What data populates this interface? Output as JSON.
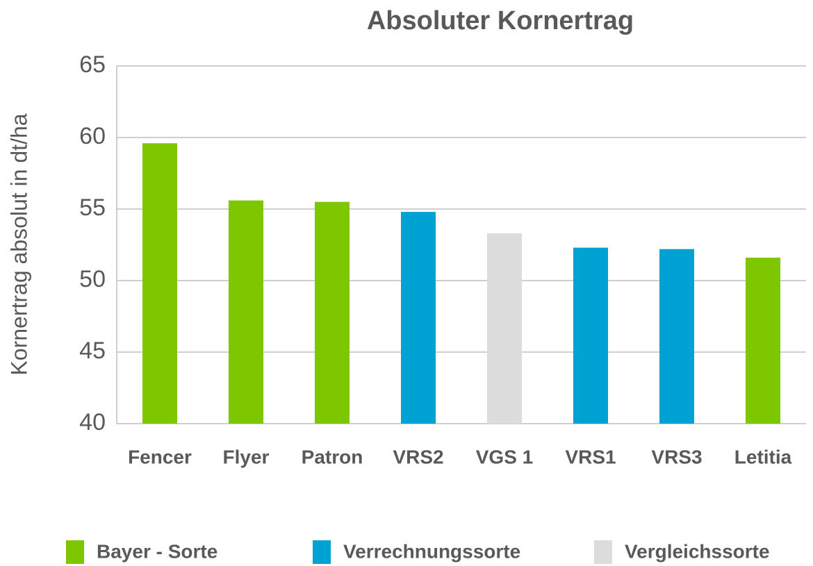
{
  "chart_data": {
    "type": "bar",
    "title": "Absoluter Kornertrag",
    "y_label": "Kornertrag absolut in dt/ha",
    "categories": [
      "Fencer",
      "Flyer",
      "Patron",
      "VRS2",
      "VGS 1",
      "VRS1",
      "VRS3",
      "Letitia"
    ],
    "series": [
      {
        "name": "Bayer - Sorte",
        "color": "#7dc600",
        "values": [
          59.6,
          55.6,
          55.5,
          null,
          null,
          null,
          null,
          51.6
        ]
      },
      {
        "name": "Verrechnungssorte",
        "color": "#00a2d3",
        "values": [
          null,
          null,
          null,
          54.8,
          null,
          52.3,
          52.2,
          null
        ]
      },
      {
        "name": "Vergleichssorte",
        "color": "#dcdcdc",
        "values": [
          null,
          null,
          null,
          null,
          53.3,
          null,
          null,
          null
        ]
      }
    ],
    "ylim": [
      40,
      65
    ],
    "yticks": [
      40,
      45,
      50,
      55,
      60,
      65
    ],
    "grid": true,
    "legend": "bottom"
  }
}
